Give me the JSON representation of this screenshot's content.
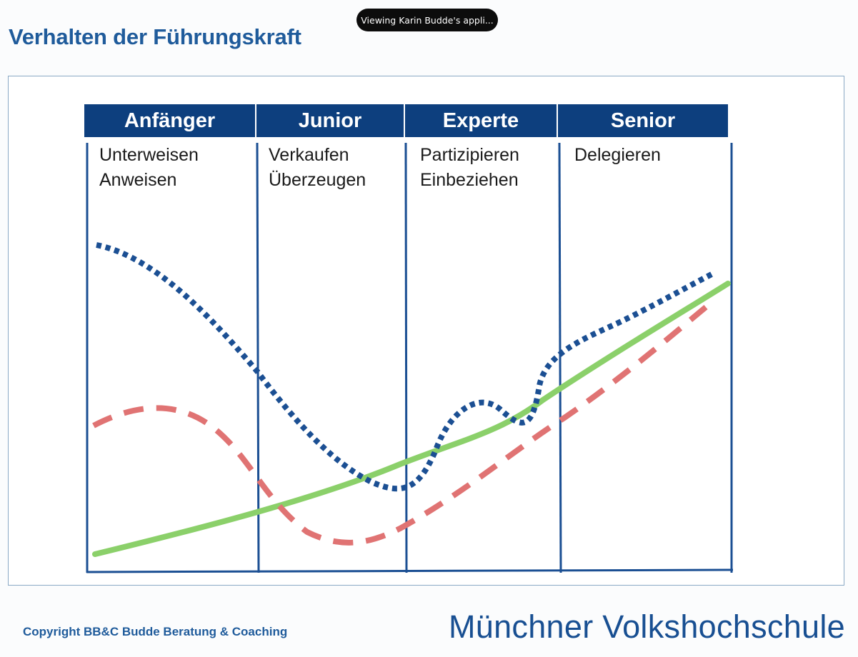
{
  "share_banner": {
    "text": "Viewing Karin Budde's appli..."
  },
  "slide": {
    "title": "Verhalten der Führungskraft",
    "phases": [
      {
        "name": "Anfänger",
        "styles": [
          "Unterweisen",
          "Anweisen"
        ]
      },
      {
        "name": "Junior",
        "styles": [
          "Verkaufen",
          "Überzeugen"
        ]
      },
      {
        "name": "Experte",
        "styles": [
          "Partizipieren",
          "Einbeziehen"
        ]
      },
      {
        "name": "Senior",
        "styles": [
          "Delegieren"
        ]
      }
    ]
  },
  "curves": [
    {
      "style": "dotted",
      "color": "#1b4f93"
    },
    {
      "style": "dashed",
      "color": "#e07373"
    },
    {
      "style": "solid",
      "color": "#8bd06a"
    }
  ],
  "colors": {
    "header_bg": "#0d3f7e",
    "title": "#1f5b9b",
    "divider": "#1b4f93"
  },
  "footer": {
    "copyright": "Copyright BB&C Budde Beratung & Coaching",
    "organization": "Münchner Volkshochschule"
  }
}
